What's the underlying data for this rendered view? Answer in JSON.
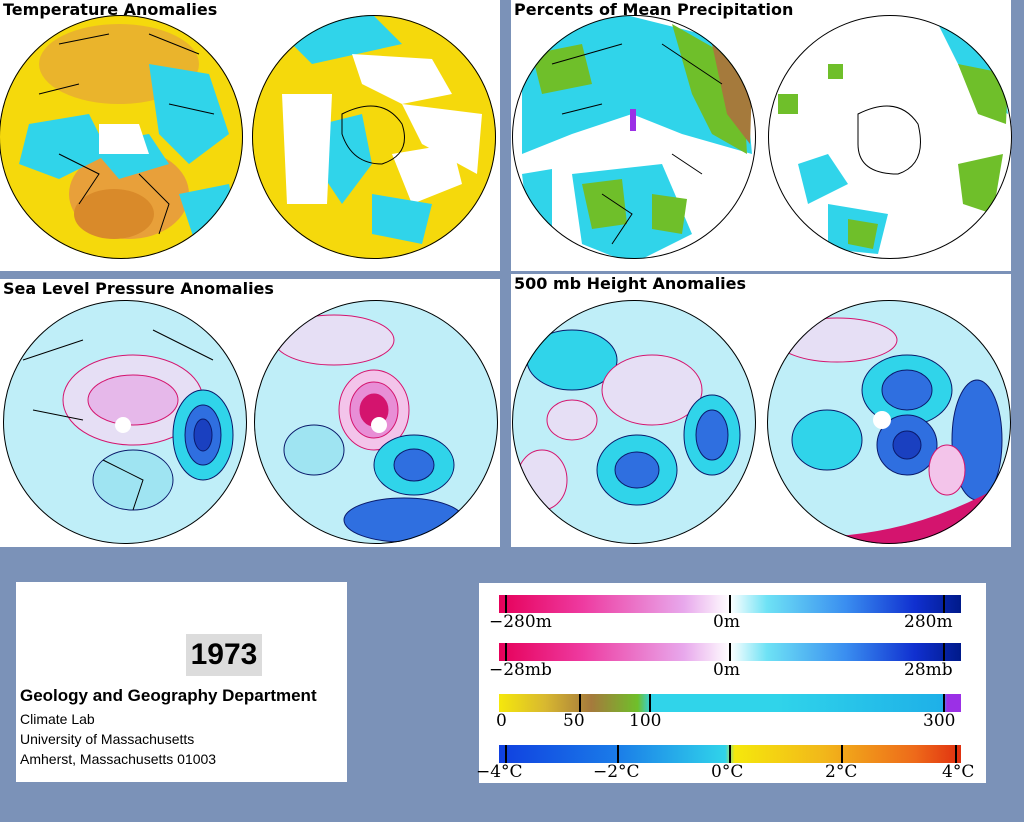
{
  "panels": {
    "temperature": {
      "title": "Temperature Anomalies"
    },
    "precipitation": {
      "title": "Percents of Mean Precipitation"
    },
    "slp": {
      "title": "Sea Level Pressure Anomalies"
    },
    "height500": {
      "title": "500 mb Height Anomalies"
    }
  },
  "info": {
    "year": "1973",
    "department": "Geology and Geography Department",
    "lines": [
      "Climate Lab",
      "University of Massachusetts",
      "Amherst, Massachusetts 01003"
    ]
  },
  "legend": {
    "height_scale": {
      "left": "−280m",
      "center": "0m",
      "right": "280m"
    },
    "pressure_scale": {
      "left": "−28mb",
      "center": "0m",
      "right": "28mb"
    },
    "precip_scale": {
      "labels": [
        "0",
        "50",
        "100",
        "300"
      ]
    },
    "temp_scale": {
      "labels": [
        "−4°C",
        "−2°C",
        "0°C",
        "2°C",
        "4°C"
      ]
    }
  },
  "colors": {
    "background": "#7b92b8",
    "temp_warm": "#f5d90c",
    "temp_hot": "#e89a2a",
    "temp_cold": "#30d4ea",
    "precip_green": "#6fbf2a",
    "precip_cyan": "#30d4ea",
    "anomaly_positive_line": "#d4146e",
    "anomaly_negative_line": "#0a1a6b",
    "anomaly_fill_light": "#bfeef8",
    "anomaly_fill_deep": "#2f6fe0",
    "anomaly_fill_pink": "#e6b8ea"
  }
}
